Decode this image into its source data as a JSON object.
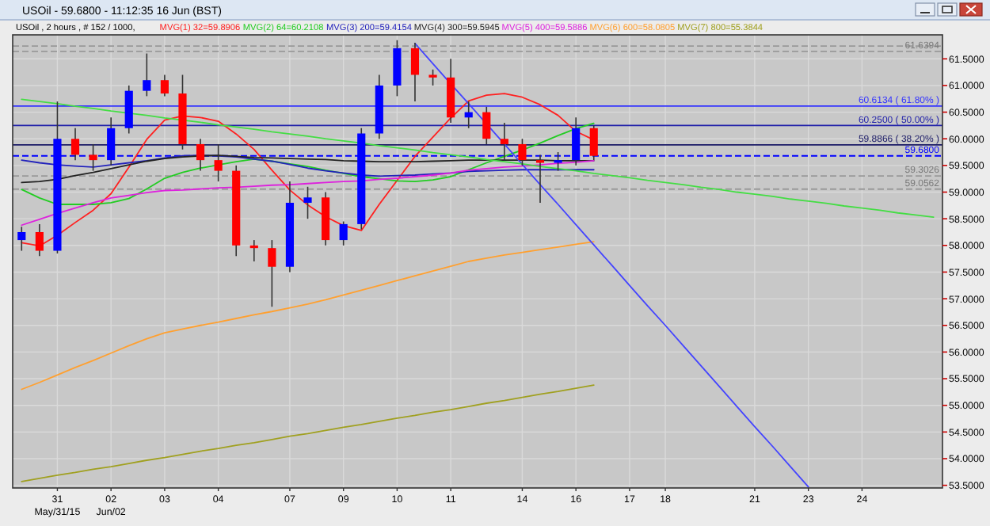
{
  "chart_data": {
    "type": "candlestick",
    "title": "USOil - 59.6800 - 11:12:35  16 Jun (BST)",
    "subtitle": "USOil , 2 hours , # 152 / 1000,",
    "categories": [
      null,
      null,
      "31\nMay/31/15",
      null,
      null,
      "02\nJun/02",
      null,
      null,
      "03",
      null,
      null,
      "04",
      null,
      null,
      null,
      "07",
      null,
      null,
      "09",
      null,
      null,
      "10",
      null,
      null,
      "11",
      null,
      null,
      null,
      "14",
      null,
      null,
      "16",
      null,
      null,
      "17",
      null,
      "18",
      null,
      null,
      null,
      null,
      "21",
      null,
      null,
      "23",
      null,
      null,
      "24",
      null,
      null,
      null,
      null
    ],
    "ohlc": [
      [
        58.1,
        58.35,
        57.9,
        58.25
      ],
      [
        58.25,
        58.4,
        57.8,
        57.9
      ],
      [
        57.9,
        60.7,
        57.85,
        60.0
      ],
      [
        60.0,
        60.2,
        59.6,
        59.7
      ],
      [
        59.7,
        59.9,
        59.4,
        59.6
      ],
      [
        59.6,
        60.4,
        59.5,
        60.2
      ],
      [
        60.2,
        61.0,
        60.1,
        60.9
      ],
      [
        60.9,
        61.6,
        60.8,
        61.1
      ],
      [
        61.1,
        61.2,
        60.8,
        60.85
      ],
      [
        60.85,
        61.2,
        59.8,
        59.9
      ],
      [
        59.9,
        60.0,
        59.4,
        59.6
      ],
      [
        59.6,
        59.9,
        59.2,
        59.4
      ],
      [
        59.4,
        59.5,
        57.8,
        58.0
      ],
      [
        58.0,
        58.1,
        57.7,
        57.95
      ],
      [
        57.95,
        58.1,
        56.85,
        57.6
      ],
      [
        57.6,
        59.2,
        57.5,
        58.8
      ],
      [
        58.8,
        59.1,
        58.5,
        58.9
      ],
      [
        58.9,
        59.0,
        58.0,
        58.1
      ],
      [
        58.1,
        58.45,
        58.0,
        58.4
      ],
      [
        58.4,
        60.2,
        58.3,
        60.1
      ],
      [
        60.1,
        61.2,
        60.0,
        61.0
      ],
      [
        61.0,
        61.85,
        60.8,
        61.7
      ],
      [
        61.7,
        61.8,
        60.7,
        61.2
      ],
      [
        61.2,
        61.3,
        61.0,
        61.15
      ],
      [
        61.15,
        61.5,
        60.3,
        60.4
      ],
      [
        60.4,
        60.7,
        60.2,
        60.5
      ],
      [
        60.5,
        60.6,
        59.9,
        60.0
      ],
      [
        60.0,
        60.3,
        59.6,
        59.9
      ],
      [
        59.9,
        60.0,
        59.5,
        59.6
      ],
      [
        59.6,
        59.7,
        58.8,
        59.55
      ],
      [
        59.55,
        59.75,
        59.4,
        59.6
      ],
      [
        59.6,
        60.4,
        59.5,
        60.2
      ],
      [
        60.2,
        60.25,
        59.6,
        59.68
      ],
      null,
      null,
      null,
      null,
      null,
      null,
      null,
      null,
      null,
      null,
      null,
      null,
      null,
      null,
      null,
      null,
      null,
      null,
      null
    ],
    "colors": [
      "#0000ff",
      "#ff0000",
      "#0000ff",
      "#ff0000",
      "#ff0000",
      "#0000ff",
      "#0000ff",
      "#0000ff",
      "#ff0000",
      "#ff0000",
      "#ff0000",
      "#ff0000",
      "#ff0000",
      "#ff0000",
      "#ff0000",
      "#0000ff",
      "#0000ff",
      "#ff0000",
      "#0000ff",
      "#0000ff",
      "#0000ff",
      "#0000ff",
      "#ff0000",
      "#ff0000",
      "#ff0000",
      "#0000ff",
      "#ff0000",
      "#ff0000",
      "#ff0000",
      "#ff0000",
      "#0000ff",
      "#0000ff",
      "#ff0000",
      null,
      null,
      null,
      null,
      null,
      null,
      null,
      null,
      null,
      null,
      null,
      null,
      null,
      null,
      null,
      null,
      null,
      null,
      null
    ],
    "series": [
      {
        "type": "line",
        "name": "MVG(1) 32=59.8906",
        "color": "#ff2020",
        "values": [
          58.05,
          57.99,
          58.19,
          58.43,
          58.66,
          58.97,
          59.47,
          59.99,
          60.35,
          60.43,
          60.4,
          60.33,
          60.09,
          59.8,
          59.41,
          59.04,
          58.76,
          58.54,
          58.37,
          58.28,
          58.77,
          59.22,
          59.67,
          60.03,
          60.39,
          60.71,
          60.82,
          60.85,
          60.78,
          60.64,
          60.44,
          60.14,
          59.98,
          null,
          null,
          null,
          null,
          null,
          null,
          null,
          null,
          null,
          null,
          null,
          null,
          null,
          null,
          null,
          null,
          null,
          null,
          null
        ]
      },
      {
        "type": "line",
        "name": "MVG(2) 64=60.2108",
        "color": "#22cc22",
        "values": [
          59.05,
          58.89,
          58.77,
          58.77,
          58.77,
          58.8,
          58.88,
          59.06,
          59.26,
          59.37,
          59.45,
          59.51,
          59.57,
          59.62,
          59.58,
          59.53,
          59.48,
          59.41,
          59.35,
          59.29,
          59.25,
          59.21,
          59.2,
          59.23,
          59.29,
          59.42,
          59.55,
          59.67,
          59.79,
          59.92,
          60.06,
          60.19,
          60.29,
          null,
          null,
          null,
          null,
          null,
          null,
          null,
          null,
          null,
          null,
          null,
          null,
          null,
          null,
          null,
          null,
          null,
          null,
          null
        ]
      },
      {
        "type": "line",
        "name": "MVG(3) 200=59.4154",
        "color": "#2222bb",
        "values": [
          59.6,
          59.55,
          59.51,
          59.49,
          59.47,
          59.51,
          59.55,
          59.59,
          59.64,
          59.68,
          59.69,
          59.68,
          59.66,
          59.62,
          59.58,
          59.52,
          59.45,
          59.4,
          59.36,
          59.32,
          59.3,
          59.31,
          59.32,
          59.34,
          59.36,
          59.39,
          59.4,
          59.41,
          59.42,
          59.42,
          59.42,
          59.42,
          59.42,
          null,
          null,
          null,
          null,
          null,
          null,
          null,
          null,
          null,
          null,
          null,
          null,
          null,
          null,
          null,
          null,
          null,
          null,
          null
        ]
      },
      {
        "type": "line",
        "name": "MVG(4) 300=59.5945",
        "color": "#222222",
        "values": [
          59.18,
          59.2,
          59.24,
          59.31,
          59.37,
          59.44,
          59.51,
          59.58,
          59.63,
          59.66,
          59.68,
          59.69,
          59.67,
          59.65,
          59.64,
          59.63,
          59.62,
          59.61,
          59.59,
          59.58,
          59.57,
          59.57,
          59.57,
          59.58,
          59.59,
          59.6,
          59.6,
          59.6,
          59.6,
          59.6,
          59.59,
          59.59,
          59.59,
          null,
          null,
          null,
          null,
          null,
          null,
          null,
          null,
          null,
          null,
          null,
          null,
          null,
          null,
          null,
          null,
          null,
          null,
          null
        ]
      },
      {
        "type": "line",
        "name": "MVG(5) 400=59.5886",
        "color": "#dd22dd",
        "values": [
          58.38,
          58.49,
          58.6,
          58.7,
          58.8,
          58.89,
          58.94,
          58.99,
          59.03,
          59.04,
          59.06,
          59.08,
          59.09,
          59.11,
          59.13,
          59.14,
          59.16,
          59.18,
          59.2,
          59.21,
          59.24,
          59.26,
          59.29,
          59.32,
          59.36,
          59.41,
          59.44,
          59.47,
          59.49,
          59.51,
          59.54,
          59.56,
          59.59,
          null,
          null,
          null,
          null,
          null,
          null,
          null,
          null,
          null,
          null,
          null,
          null,
          null,
          null,
          null,
          null,
          null,
          null,
          null
        ]
      },
      {
        "type": "line",
        "name": "MVG(6) 600=58.0805",
        "color": "#ffa030",
        "values": [
          55.3,
          55.43,
          55.57,
          55.71,
          55.84,
          55.98,
          56.12,
          56.25,
          56.36,
          56.43,
          56.5,
          56.56,
          56.63,
          56.7,
          56.76,
          56.83,
          56.9,
          56.98,
          57.07,
          57.16,
          57.25,
          57.34,
          57.43,
          57.52,
          57.61,
          57.7,
          57.76,
          57.82,
          57.87,
          57.92,
          57.97,
          58.02,
          58.07,
          null,
          null,
          null,
          null,
          null,
          null,
          null,
          null,
          null,
          null,
          null,
          null,
          null,
          null,
          null,
          null,
          null,
          null,
          null
        ]
      },
      {
        "type": "line",
        "name": "MVG(7) 800=55.3844",
        "color": "#a0a020",
        "values": [
          53.57,
          53.63,
          53.69,
          53.74,
          53.8,
          53.85,
          53.91,
          53.97,
          54.02,
          54.08,
          54.14,
          54.19,
          54.25,
          54.3,
          54.36,
          54.42,
          54.47,
          54.53,
          54.59,
          54.64,
          54.7,
          54.76,
          54.81,
          54.87,
          54.92,
          54.98,
          55.04,
          55.09,
          55.15,
          55.21,
          55.26,
          55.32,
          55.38,
          null,
          null,
          null,
          null,
          null,
          null,
          null,
          null,
          null,
          null,
          null,
          null,
          null,
          null,
          null,
          null,
          null,
          null,
          null
        ]
      },
      {
        "type": "line",
        "color": "#4444ff",
        "values": [
          null,
          null,
          null,
          null,
          null,
          null,
          null,
          null,
          null,
          null,
          null,
          null,
          null,
          null,
          null,
          null,
          null,
          null,
          null,
          null,
          null,
          null,
          61.79,
          61.41,
          61.03,
          60.66,
          60.28,
          59.9,
          59.52,
          59.14,
          58.77,
          58.39,
          58.01,
          57.63,
          57.25,
          56.87,
          56.5,
          56.12,
          55.74,
          55.36,
          54.98,
          54.6,
          54.23,
          53.85,
          53.47,
          null,
          null,
          null,
          null,
          null,
          null,
          null
        ]
      },
      {
        "type": "line",
        "color": "#44dd44",
        "values": [
          60.74,
          60.7,
          60.66,
          60.61,
          60.57,
          60.52,
          60.48,
          60.44,
          60.39,
          60.35,
          60.31,
          60.26,
          60.22,
          60.18,
          60.13,
          60.09,
          60.05,
          60.0,
          59.96,
          59.92,
          59.87,
          59.83,
          59.79,
          59.74,
          59.7,
          59.66,
          59.61,
          59.57,
          59.53,
          59.48,
          59.44,
          59.4,
          59.35,
          59.31,
          59.27,
          59.22,
          59.18,
          59.14,
          59.09,
          59.05,
          59.0,
          58.96,
          58.92,
          58.87,
          58.83,
          58.79,
          58.74,
          58.7,
          58.66,
          58.61,
          58.57,
          58.53
        ]
      }
    ],
    "ref_lines": [
      {
        "axis": "y",
        "value": 60.6134,
        "label": "60.6134 ( 61.80% )",
        "color": "#3333ff",
        "line_style": "solid"
      },
      {
        "axis": "y",
        "value": 60.25,
        "label": "60.2500 ( 50.00% )",
        "color": "#2222aa",
        "line_style": "solid"
      },
      {
        "axis": "y",
        "value": 59.8866,
        "label": "59.8866 ( 38.20% )",
        "color": "#1a1a66",
        "line_style": "solid"
      },
      {
        "axis": "y",
        "value": 59.68,
        "label": "59.6800",
        "color": "#0000ff",
        "line_style": "dashed"
      },
      {
        "axis": "y",
        "value": 61.74,
        "color": "#999999",
        "line_style": "dashed"
      },
      {
        "axis": "y",
        "value": 61.6394,
        "label": "61.6394",
        "color": "#999999",
        "line_style": "dashed"
      },
      {
        "axis": "y",
        "value": 59.3026,
        "label": "59.3026",
        "color": "#999999",
        "line_style": "dashed"
      },
      {
        "axis": "y",
        "value": 59.0562,
        "label": "59.0562",
        "color": "#999999",
        "line_style": "dashed"
      }
    ],
    "ylim": [
      53.45,
      61.95
    ],
    "yticks": [
      {
        "value": 53.5,
        "label": "53.5000"
      },
      {
        "value": 54,
        "label": "54.0000"
      },
      {
        "value": 54.5,
        "label": "54.5000"
      },
      {
        "value": 55,
        "label": "55.0000"
      },
      {
        "value": 55.5,
        "label": "55.5000"
      },
      {
        "value": 56,
        "label": "56.0000"
      },
      {
        "value": 56.5,
        "label": "56.5000"
      },
      {
        "value": 57,
        "label": "57.0000"
      },
      {
        "value": 57.5,
        "label": "57.5000"
      },
      {
        "value": 58,
        "label": "58.0000"
      },
      {
        "value": 58.5,
        "label": "58.5000"
      },
      {
        "value": 59,
        "label": "59.0000"
      },
      {
        "value": 59.5,
        "label": "59.5000"
      },
      {
        "value": 60,
        "label": "60.0000"
      },
      {
        "value": 60.5,
        "label": "60.5000"
      },
      {
        "value": 61,
        "label": "61.0000"
      },
      {
        "value": 61.5,
        "label": "61.5000"
      }
    ],
    "grid": true,
    "legend": "top"
  }
}
